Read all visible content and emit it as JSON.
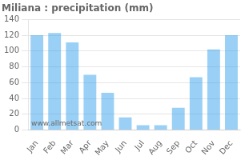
{
  "chart_data": {
    "type": "bar",
    "title": "Miliana : precipitation (mm)",
    "categories": [
      "Jan",
      "Feb",
      "Mar",
      "Apr",
      "May",
      "Jun",
      "Jul",
      "Aug",
      "Sep",
      "Oct",
      "Nov",
      "Dec"
    ],
    "values": [
      120,
      123,
      111,
      70,
      47,
      16,
      6,
      6,
      28,
      67,
      102,
      120
    ],
    "ylim": [
      0,
      140
    ],
    "yticks": [
      0,
      20,
      40,
      60,
      80,
      100,
      120,
      140
    ],
    "grid": true,
    "annotations": [
      "www.allmetsat.com"
    ]
  }
}
